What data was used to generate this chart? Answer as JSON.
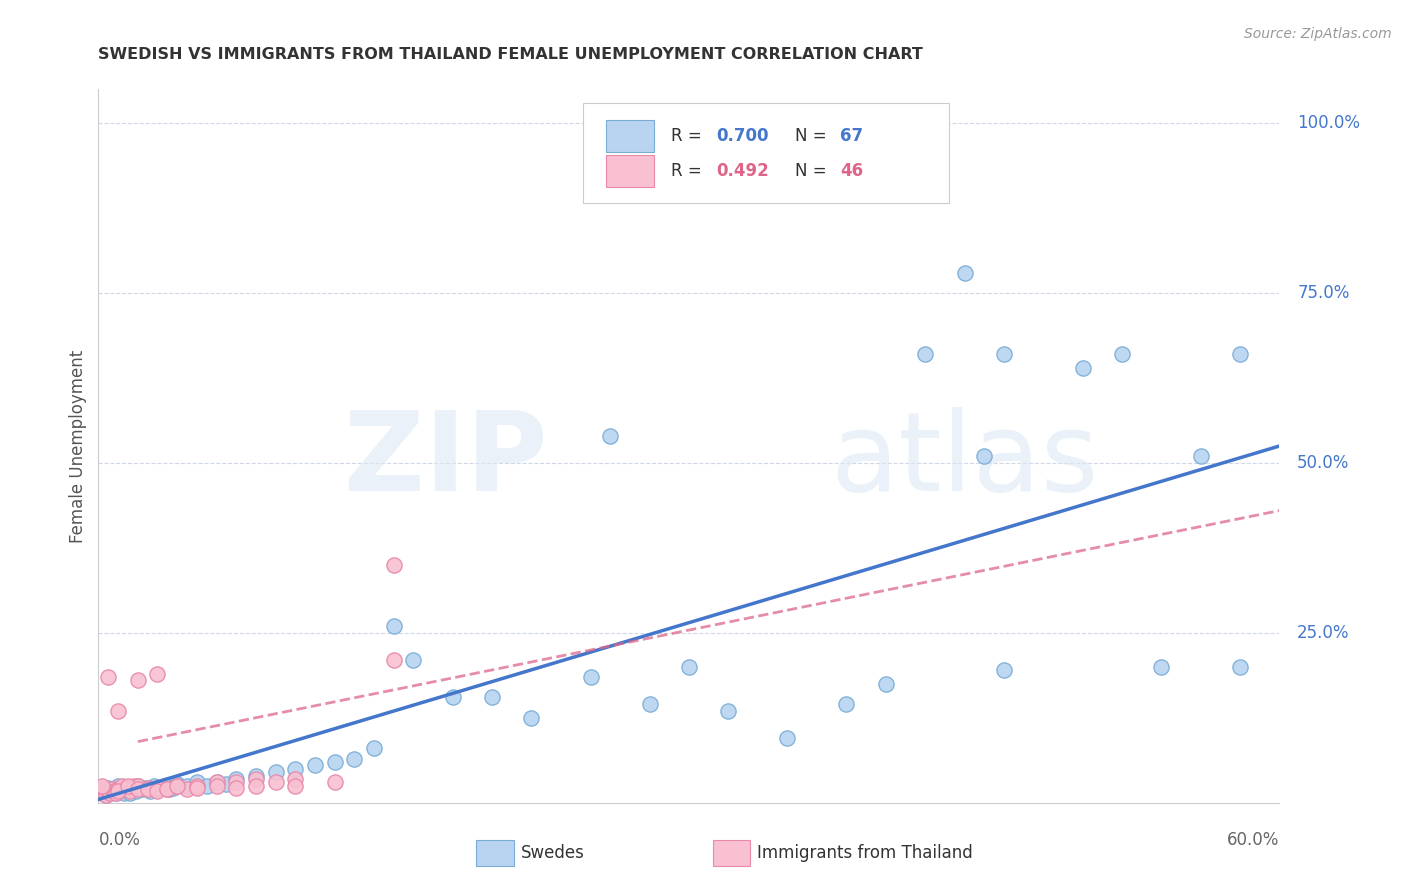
{
  "title": "SWEDISH VS IMMIGRANTS FROM THAILAND FEMALE UNEMPLOYMENT CORRELATION CHART",
  "source": "Source: ZipAtlas.com",
  "ylabel": "Female Unemployment",
  "xlim": [
    0.0,
    0.6
  ],
  "ylim": [
    0.0,
    1.05
  ],
  "swede_color": "#b8d4f0",
  "swede_edge_color": "#7aadd6",
  "thai_color": "#f8c0d0",
  "thai_edge_color": "#e888aa",
  "swede_line_color": "#4477cc",
  "thai_line_color": "#dd6688",
  "swede_line_x": [
    0.0,
    0.6
  ],
  "swede_line_y": [
    0.005,
    0.525
  ],
  "thai_line_x": [
    0.02,
    0.6
  ],
  "thai_line_y": [
    0.09,
    0.43
  ],
  "background_color": "#ffffff",
  "grid_color": "#d0d8e8",
  "right_ytick_vals": [
    0.25,
    0.5,
    0.75,
    1.0
  ],
  "right_ytick_labels": [
    "25.0%",
    "50.0%",
    "75.0%",
    "100.0%"
  ],
  "swede_scatter_x": [
    0.001,
    0.002,
    0.003,
    0.004,
    0.005,
    0.006,
    0.007,
    0.008,
    0.009,
    0.01,
    0.011,
    0.012,
    0.013,
    0.014,
    0.015,
    0.016,
    0.017,
    0.018,
    0.019,
    0.02,
    0.022,
    0.024,
    0.026,
    0.028,
    0.03,
    0.032,
    0.034,
    0.036,
    0.038,
    0.04,
    0.045,
    0.05,
    0.055,
    0.06,
    0.065,
    0.07,
    0.08,
    0.09,
    0.1,
    0.11,
    0.12,
    0.13,
    0.14,
    0.15,
    0.16,
    0.18,
    0.2,
    0.22,
    0.25,
    0.28,
    0.3,
    0.32,
    0.35,
    0.38,
    0.4,
    0.42,
    0.45,
    0.46,
    0.5,
    0.52,
    0.54,
    0.56,
    0.58,
    0.44,
    0.26,
    0.46,
    0.58
  ],
  "swede_scatter_y": [
    0.02,
    0.015,
    0.018,
    0.012,
    0.022,
    0.015,
    0.018,
    0.02,
    0.015,
    0.025,
    0.018,
    0.02,
    0.015,
    0.022,
    0.018,
    0.015,
    0.02,
    0.022,
    0.018,
    0.025,
    0.02,
    0.022,
    0.018,
    0.025,
    0.02,
    0.022,
    0.025,
    0.02,
    0.022,
    0.028,
    0.025,
    0.03,
    0.025,
    0.03,
    0.028,
    0.035,
    0.04,
    0.045,
    0.05,
    0.055,
    0.06,
    0.065,
    0.08,
    0.26,
    0.21,
    0.155,
    0.155,
    0.125,
    0.185,
    0.145,
    0.2,
    0.135,
    0.095,
    0.145,
    0.175,
    0.66,
    0.51,
    0.195,
    0.64,
    0.66,
    0.2,
    0.51,
    0.2,
    0.78,
    0.54,
    0.66,
    0.66
  ],
  "thai_scatter_x": [
    0.001,
    0.002,
    0.003,
    0.004,
    0.005,
    0.006,
    0.007,
    0.008,
    0.009,
    0.01,
    0.012,
    0.014,
    0.016,
    0.018,
    0.02,
    0.025,
    0.03,
    0.035,
    0.04,
    0.045,
    0.05,
    0.06,
    0.07,
    0.08,
    0.09,
    0.1,
    0.01,
    0.015,
    0.02,
    0.025,
    0.03,
    0.035,
    0.04,
    0.05,
    0.06,
    0.07,
    0.08,
    0.1,
    0.12,
    0.15,
    0.002,
    0.005,
    0.01,
    0.02,
    0.03,
    0.15
  ],
  "thai_scatter_y": [
    0.018,
    0.015,
    0.02,
    0.012,
    0.018,
    0.015,
    0.02,
    0.018,
    0.015,
    0.02,
    0.025,
    0.02,
    0.018,
    0.025,
    0.025,
    0.022,
    0.022,
    0.02,
    0.025,
    0.02,
    0.025,
    0.03,
    0.03,
    0.035,
    0.03,
    0.035,
    0.018,
    0.025,
    0.02,
    0.02,
    0.018,
    0.02,
    0.025,
    0.022,
    0.025,
    0.022,
    0.025,
    0.025,
    0.03,
    0.35,
    0.025,
    0.185,
    0.135,
    0.18,
    0.19,
    0.21
  ]
}
